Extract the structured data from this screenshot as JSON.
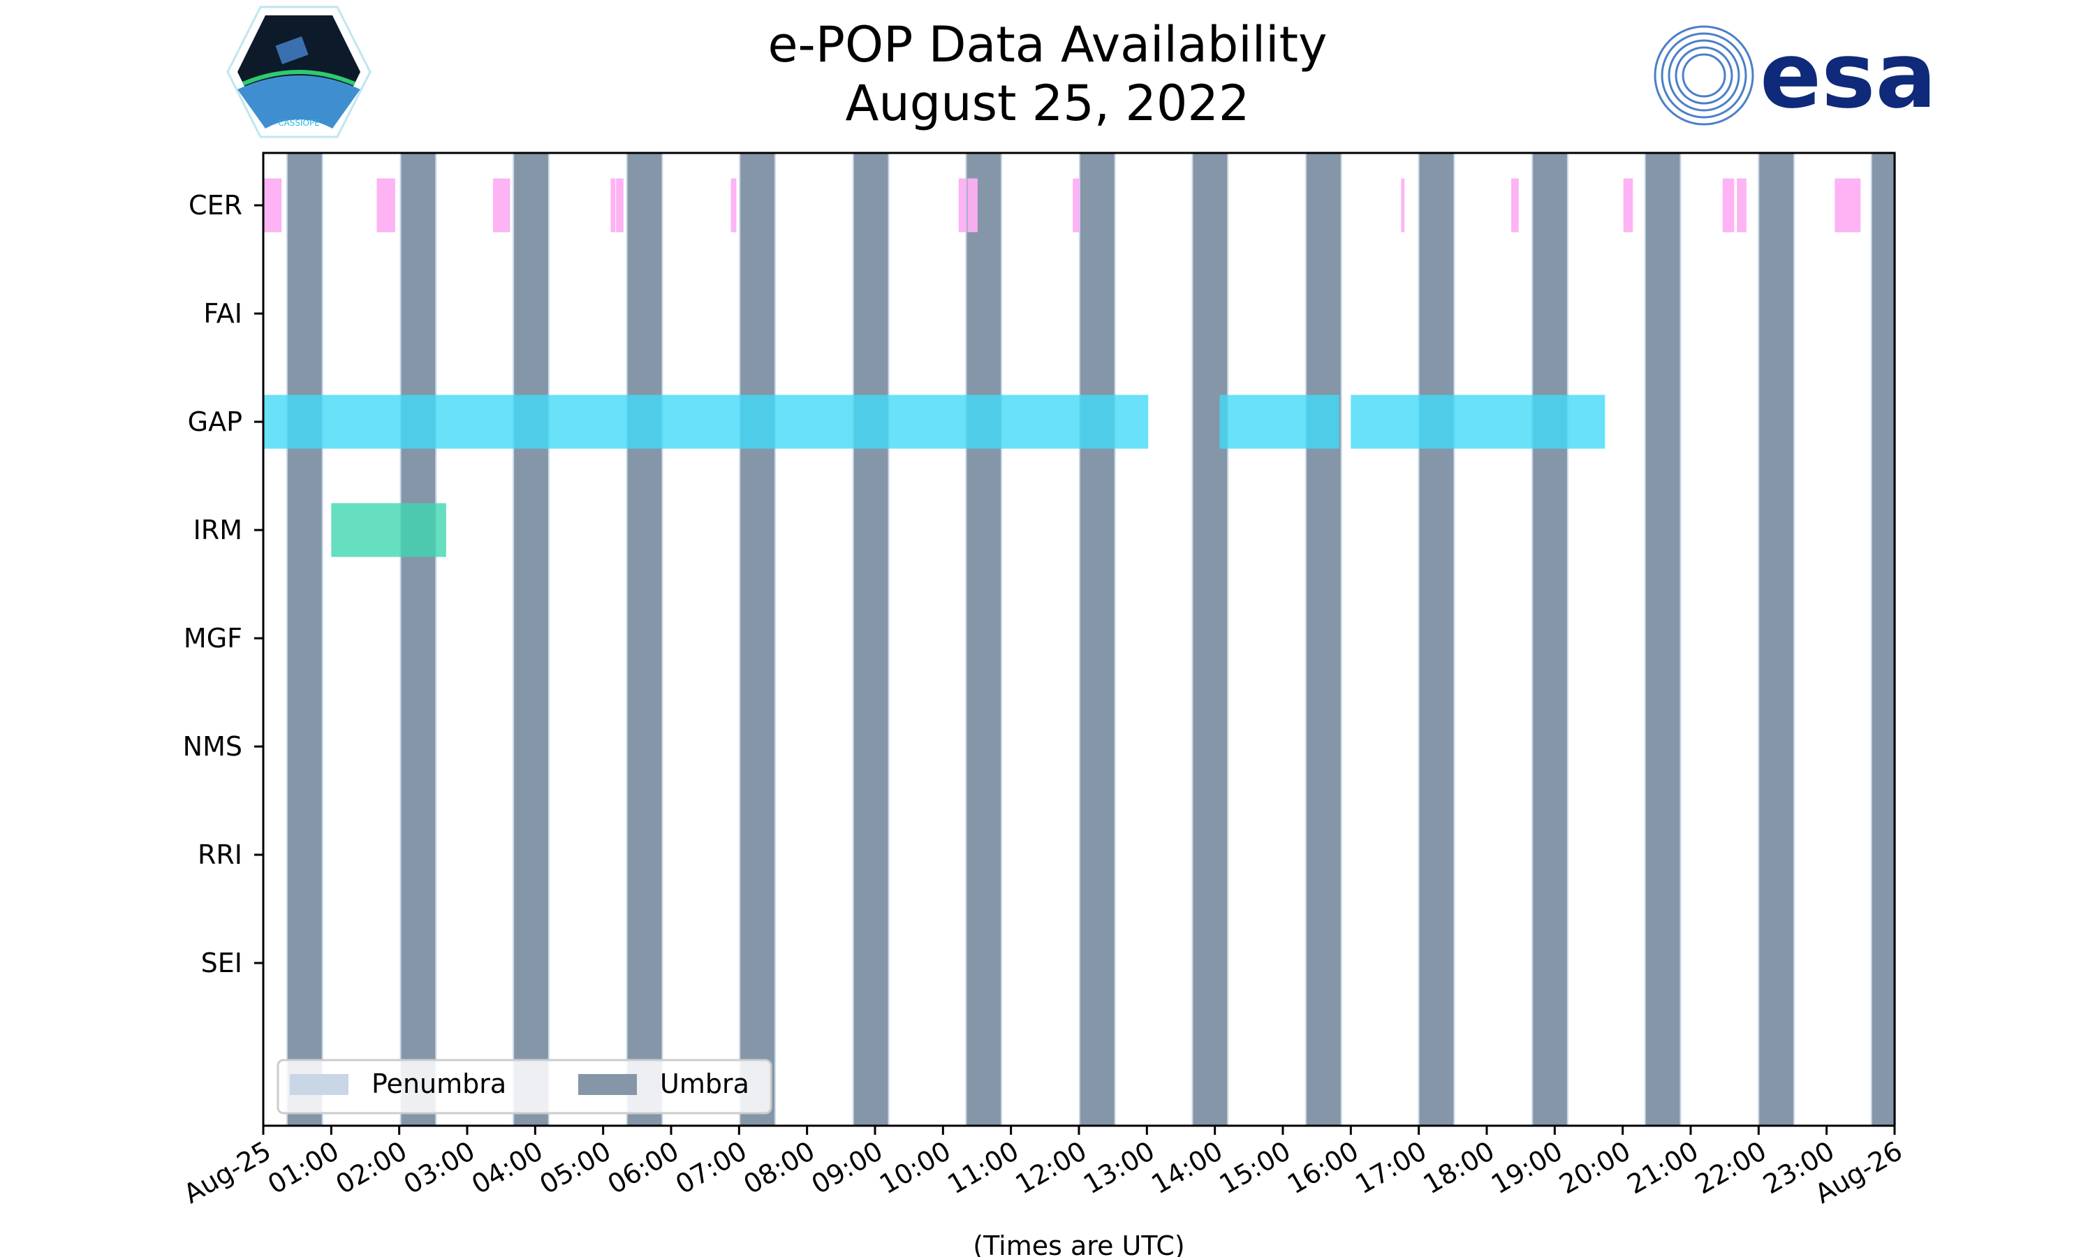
{
  "title_line1": "e-POP Data Availability",
  "title_line2": "August 25, 2022",
  "logos": {
    "left": "CASSIOPE",
    "right": "esa"
  },
  "chart_data": {
    "type": "timeline",
    "title": "e-POP Data Availability August 25, 2022",
    "xlabel": "(Times are UTC)",
    "xlim_hours": [
      0,
      24
    ],
    "x_tick_labels": [
      "Aug-25",
      "01:00",
      "02:00",
      "03:00",
      "04:00",
      "05:00",
      "06:00",
      "07:00",
      "08:00",
      "09:00",
      "10:00",
      "11:00",
      "12:00",
      "13:00",
      "14:00",
      "15:00",
      "16:00",
      "17:00",
      "18:00",
      "19:00",
      "20:00",
      "21:00",
      "22:00",
      "23:00",
      "Aug-26"
    ],
    "instruments": [
      "CER",
      "FAI",
      "GAP",
      "IRM",
      "MGF",
      "NMS",
      "RRI",
      "SEI"
    ],
    "intervals_hours": {
      "CER": [
        [
          0.0,
          0.27
        ],
        [
          1.67,
          1.94
        ],
        [
          3.38,
          3.63
        ],
        [
          5.11,
          5.18
        ],
        [
          5.19,
          5.3
        ],
        [
          6.88,
          6.96
        ],
        [
          10.23,
          10.34
        ],
        [
          10.36,
          10.51
        ],
        [
          11.91,
          12.01
        ],
        [
          16.74,
          16.79
        ],
        [
          18.36,
          18.47
        ],
        [
          20.01,
          20.15
        ],
        [
          21.47,
          21.64
        ],
        [
          21.68,
          21.82
        ],
        [
          23.12,
          23.5
        ]
      ],
      "FAI": [],
      "GAP": [
        [
          0.0,
          13.02
        ],
        [
          14.07,
          15.83
        ],
        [
          16.0,
          19.74
        ]
      ],
      "IRM": [
        [
          1.0,
          2.69
        ]
      ],
      "MGF": [],
      "NMS": [],
      "RRI": [],
      "SEI": []
    },
    "umbra_hours": [
      [
        0.36,
        0.86
      ],
      [
        2.03,
        2.53
      ],
      [
        3.69,
        4.19
      ],
      [
        5.36,
        5.86
      ],
      [
        7.02,
        7.52
      ],
      [
        8.69,
        9.19
      ],
      [
        10.35,
        10.85
      ],
      [
        12.02,
        12.52
      ],
      [
        13.68,
        14.18
      ],
      [
        15.35,
        15.85
      ],
      [
        17.01,
        17.51
      ],
      [
        18.68,
        19.18
      ],
      [
        20.34,
        20.84
      ],
      [
        22.01,
        22.51
      ],
      [
        23.67,
        24.0
      ]
    ],
    "legend": [
      {
        "label": "Penumbra",
        "color": "#c8d6e6"
      },
      {
        "label": "Umbra",
        "color": "#8496a8"
      }
    ],
    "legend_position": "lower-left",
    "colors": {
      "CER": "#fdaff3",
      "GAP": "#42d9f7",
      "IRM": "#40d6b0",
      "umbra": "#8496a8"
    }
  }
}
